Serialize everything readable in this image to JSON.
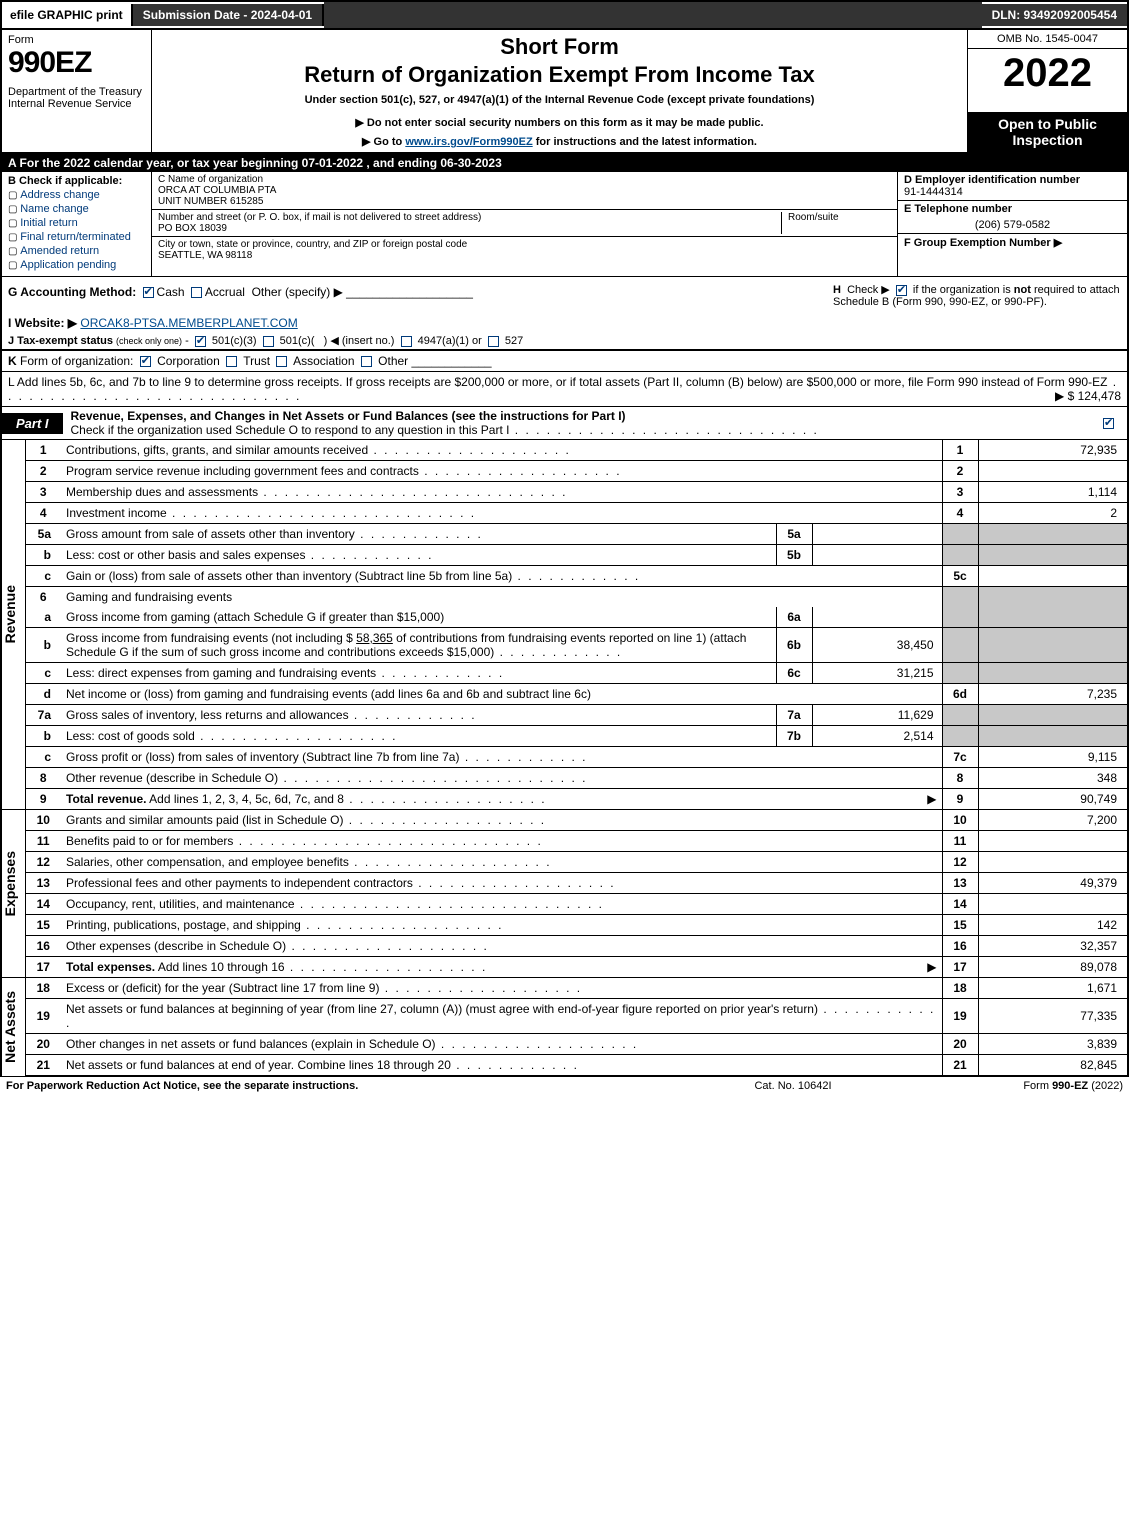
{
  "topbar": {
    "efile": "efile GRAPHIC print",
    "submission": "Submission Date - 2024-04-01",
    "dln": "DLN: 93492092005454"
  },
  "header": {
    "form_word": "Form",
    "form_num": "990EZ",
    "dept": "Department of the Treasury\nInternal Revenue Service",
    "short_form": "Short Form",
    "title": "Return of Organization Exempt From Income Tax",
    "sub1": "Under section 501(c), 527, or 4947(a)(1) of the Internal Revenue Code (except private foundations)",
    "sub2": "▶ Do not enter social security numbers on this form as it may be made public.",
    "sub3_pre": "▶ Go to ",
    "sub3_link": "www.irs.gov/Form990EZ",
    "sub3_post": " for instructions and the latest information.",
    "omb": "OMB No. 1545-0047",
    "year": "2022",
    "inspect": "Open to Public Inspection"
  },
  "row_a": "A  For the 2022 calendar year, or tax year beginning 07-01-2022 , and ending 06-30-2023",
  "section_b": {
    "label": "B  Check if applicable:",
    "items": [
      "Address change",
      "Name change",
      "Initial return",
      "Final return/terminated",
      "Amended return",
      "Application pending"
    ]
  },
  "section_c": {
    "label": "C Name of organization",
    "org_name": "ORCA AT COLUMBIA PTA",
    "unit": "UNIT NUMBER 615285",
    "addr_label": "Number and street (or P. O. box, if mail is not delivered to street address)",
    "addr": "PO BOX 18039",
    "suite_label": "Room/suite",
    "city_label": "City or town, state or province, country, and ZIP or foreign postal code",
    "city": "SEATTLE, WA  98118"
  },
  "section_d": {
    "label": "D Employer identification number",
    "val": "91-1444314"
  },
  "section_e": {
    "label": "E Telephone number",
    "val": "(206) 579-0582"
  },
  "section_f": {
    "label": "F Group Exemption Number  ▶"
  },
  "row_g": {
    "label": "G Accounting Method:",
    "cash": "Cash",
    "accrual": "Accrual",
    "other": "Other (specify) ▶"
  },
  "row_h": "H  Check ▶     if the organization is not required to attach Schedule B (Form 990, 990-EZ, or 990-PF).",
  "row_i": {
    "label": "I Website: ▶",
    "val": "ORCAK8-PTSA.MEMBERPLANET.COM"
  },
  "row_j": "J Tax-exempt status (check only one) - ☑ 501(c)(3)  ▢ 501(c)(  ) ◀ (insert no.)  ▢ 4947(a)(1) or  ▢ 527",
  "row_k": "K Form of organization:   ☑ Corporation   ▢ Trust   ▢ Association   ▢ Other",
  "row_l": {
    "text": "L Add lines 5b, 6c, and 7b to line 9 to determine gross receipts. If gross receipts are $200,000 or more, or if total assets (Part II, column (B) below) are $500,000 or more, file Form 990 instead of Form 990-EZ",
    "val": "▶ $ 124,478"
  },
  "part1": {
    "tag": "Part I",
    "title": "Revenue, Expenses, and Changes in Net Assets or Fund Balances (see the instructions for Part I)",
    "subtitle": "Check if the organization used Schedule O to respond to any question in this Part I"
  },
  "lines": {
    "1": {
      "desc": "Contributions, gifts, grants, and similar amounts received",
      "val": "72,935"
    },
    "2": {
      "desc": "Program service revenue including government fees and contracts",
      "val": ""
    },
    "3": {
      "desc": "Membership dues and assessments",
      "val": "1,114"
    },
    "4": {
      "desc": "Investment income",
      "val": "2"
    },
    "5a": {
      "desc": "Gross amount from sale of assets other than inventory",
      "mini": ""
    },
    "5b": {
      "desc": "Less: cost or other basis and sales expenses",
      "mini": ""
    },
    "5c": {
      "desc": "Gain or (loss) from sale of assets other than inventory (Subtract line 5b from line 5a)",
      "val": ""
    },
    "6": {
      "desc": "Gaming and fundraising events"
    },
    "6a": {
      "desc": "Gross income from gaming (attach Schedule G if greater than $15,000)",
      "mini": ""
    },
    "6b": {
      "desc1": "Gross income from fundraising events (not including $ ",
      "amount_inline": "58,365",
      "desc2": " of contributions from fundraising events reported on line 1) (attach Schedule G if the sum of such gross income and contributions exceeds $15,000)",
      "mini": "38,450"
    },
    "6c": {
      "desc": "Less: direct expenses from gaming and fundraising events",
      "mini": "31,215"
    },
    "6d": {
      "desc": "Net income or (loss) from gaming and fundraising events (add lines 6a and 6b and subtract line 6c)",
      "val": "7,235"
    },
    "7a": {
      "desc": "Gross sales of inventory, less returns and allowances",
      "mini": "11,629"
    },
    "7b": {
      "desc": "Less: cost of goods sold",
      "mini": "2,514"
    },
    "7c": {
      "desc": "Gross profit or (loss) from sales of inventory (Subtract line 7b from line 7a)",
      "val": "9,115"
    },
    "8": {
      "desc": "Other revenue (describe in Schedule O)",
      "val": "348"
    },
    "9": {
      "desc": "Total revenue. Add lines 1, 2, 3, 4, 5c, 6d, 7c, and 8",
      "val": "90,749"
    },
    "10": {
      "desc": "Grants and similar amounts paid (list in Schedule O)",
      "val": "7,200"
    },
    "11": {
      "desc": "Benefits paid to or for members",
      "val": ""
    },
    "12": {
      "desc": "Salaries, other compensation, and employee benefits",
      "val": ""
    },
    "13": {
      "desc": "Professional fees and other payments to independent contractors",
      "val": "49,379"
    },
    "14": {
      "desc": "Occupancy, rent, utilities, and maintenance",
      "val": ""
    },
    "15": {
      "desc": "Printing, publications, postage, and shipping",
      "val": "142"
    },
    "16": {
      "desc": "Other expenses (describe in Schedule O)",
      "val": "32,357"
    },
    "17": {
      "desc": "Total expenses. Add lines 10 through 16",
      "val": "89,078"
    },
    "18": {
      "desc": "Excess or (deficit) for the year (Subtract line 17 from line 9)",
      "val": "1,671"
    },
    "19": {
      "desc": "Net assets or fund balances at beginning of year (from line 27, column (A)) (must agree with end-of-year figure reported on prior year's return)",
      "val": "77,335"
    },
    "20": {
      "desc": "Other changes in net assets or fund balances (explain in Schedule O)",
      "val": "3,839"
    },
    "21": {
      "desc": "Net assets or fund balances at end of year. Combine lines 18 through 20",
      "val": "82,845"
    }
  },
  "side_labels": {
    "rev": "Revenue",
    "exp": "Expenses",
    "na": "Net Assets"
  },
  "footer": {
    "left": "For Paperwork Reduction Act Notice, see the separate instructions.",
    "mid": "Cat. No. 10642I",
    "right_pre": "Form ",
    "right_bold": "990-EZ",
    "right_post": " (2022)"
  }
}
